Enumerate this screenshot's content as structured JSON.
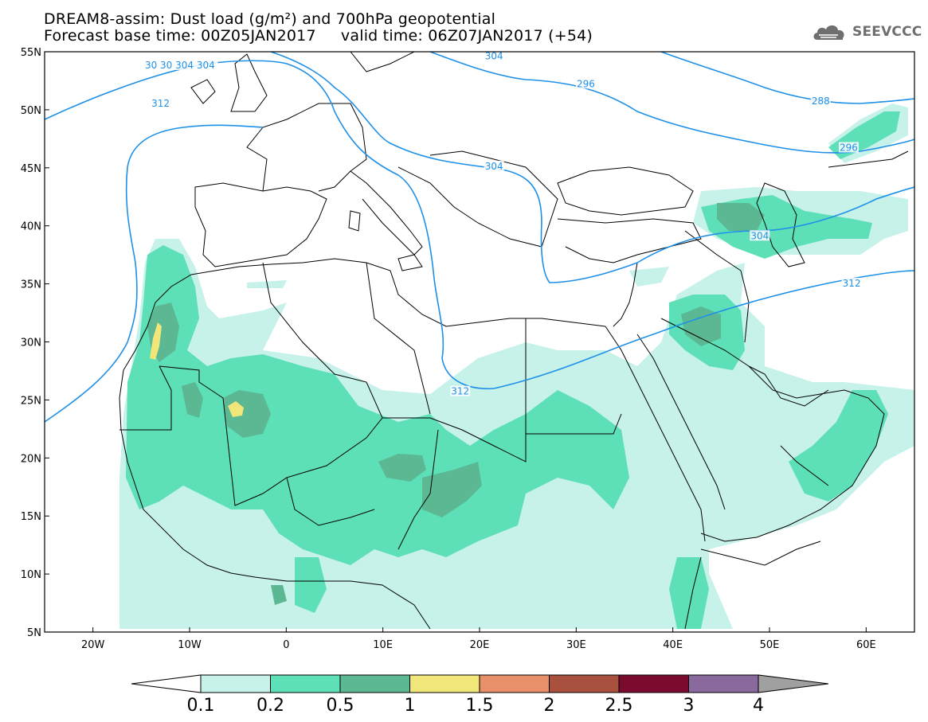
{
  "title": {
    "line1": "DREAM8-assim: Dust load (g/m²) and 700hPa geopotential",
    "line2": "Forecast base time: 00Z05JAN2017     valid time: 06Z07JAN2017 (+54)"
  },
  "logo": {
    "text": "SEEVCCC",
    "icon": "cloud-logo-icon"
  },
  "map": {
    "region": "North Africa, Europe and Middle East",
    "lon_range": [
      -25,
      65
    ],
    "lat_range": [
      5,
      55
    ],
    "lon_ticks": [
      {
        "value": -20,
        "label": "20W"
      },
      {
        "value": -10,
        "label": "10W"
      },
      {
        "value": 0,
        "label": "0"
      },
      {
        "value": 10,
        "label": "10E"
      },
      {
        "value": 20,
        "label": "20E"
      },
      {
        "value": 30,
        "label": "30E"
      },
      {
        "value": 40,
        "label": "40E"
      },
      {
        "value": 50,
        "label": "50E"
      },
      {
        "value": 60,
        "label": "60E"
      }
    ],
    "lat_ticks": [
      {
        "value": 55,
        "label": "55N"
      },
      {
        "value": 50,
        "label": "50N"
      },
      {
        "value": 45,
        "label": "45N"
      },
      {
        "value": 40,
        "label": "40N"
      },
      {
        "value": 35,
        "label": "35N"
      },
      {
        "value": 30,
        "label": "30N"
      },
      {
        "value": 25,
        "label": "25N"
      },
      {
        "value": 20,
        "label": "20N"
      },
      {
        "value": 15,
        "label": "15N"
      },
      {
        "value": 10,
        "label": "10N"
      },
      {
        "value": 5,
        "label": "5N"
      }
    ],
    "contour_color": "#1e90e8",
    "contour_labels": [
      {
        "text": "312",
        "lon": -13,
        "lat": 50.4
      },
      {
        "text": "312",
        "lon": 18,
        "lat": 25.6
      },
      {
        "text": "312",
        "lon": 58.5,
        "lat": 34.9
      },
      {
        "text": "304",
        "lon": 21.5,
        "lat": 45
      },
      {
        "text": "304",
        "lon": 49,
        "lat": 39
      },
      {
        "text": "296",
        "lon": 31,
        "lat": 52.1
      },
      {
        "text": "296",
        "lon": 58.2,
        "lat": 46.6
      },
      {
        "text": "288",
        "lon": 55.3,
        "lat": 50.6
      },
      {
        "text": "304",
        "lon": 21.5,
        "lat": 54.5
      },
      {
        "text": "30 30 304 304",
        "lon": -11,
        "lat": 53.7
      }
    ]
  },
  "colorbar": {
    "levels": [
      "0.1",
      "0.2",
      "0.5",
      "1",
      "1.5",
      "2",
      "2.5",
      "3",
      "4"
    ],
    "colors": [
      "#c6f2ea",
      "#5ddfb8",
      "#5bb892",
      "#f0e67a",
      "#e89069",
      "#a9503e",
      "#7a0a2e",
      "#8a6a9e"
    ],
    "under_color": "#ffffff",
    "over_color": "#a0a0a0"
  }
}
